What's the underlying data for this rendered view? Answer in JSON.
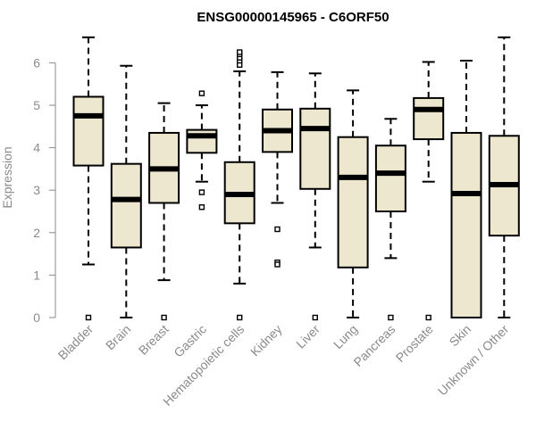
{
  "chart_data": {
    "type": "boxplot",
    "title": "ENSG00000145965 - C6ORF50",
    "ylabel": "Expression",
    "xlabel": "",
    "ylim": [
      0,
      6.6
    ],
    "yticks": [
      0,
      1,
      2,
      3,
      4,
      5,
      6
    ],
    "box_fill": "#ede7cf",
    "grid": false,
    "categories": [
      "Bladder",
      "Brain",
      "Breast",
      "Gastric",
      "Hematopoietic cells",
      "Kidney",
      "Liver",
      "Lung",
      "Pancreas",
      "Prostate",
      "Skin",
      "Unknown / Other"
    ],
    "boxes": [
      {
        "name": "Bladder",
        "whisker_low": 1.25,
        "q1": 3.58,
        "median": 4.75,
        "q3": 5.2,
        "whisker_high": 6.6,
        "outliers": [
          0
        ]
      },
      {
        "name": "Brain",
        "whisker_low": 0,
        "q1": 1.65,
        "median": 2.78,
        "q3": 3.62,
        "whisker_high": 5.93,
        "outliers": []
      },
      {
        "name": "Breast",
        "whisker_low": 0.88,
        "q1": 2.7,
        "median": 3.5,
        "q3": 4.35,
        "whisker_high": 5.05,
        "outliers": [
          0
        ]
      },
      {
        "name": "Gastric",
        "whisker_low": 3.2,
        "q1": 3.88,
        "median": 4.28,
        "q3": 4.42,
        "whisker_high": 5.0,
        "outliers": [
          5.28,
          2.95,
          2.6
        ]
      },
      {
        "name": "Hematopoietic cells",
        "whisker_low": 0.8,
        "q1": 2.22,
        "median": 2.9,
        "q3": 3.66,
        "whisker_high": 5.8,
        "outliers": [
          0,
          5.95,
          6.05,
          6.12,
          6.2,
          6.25
        ]
      },
      {
        "name": "Kidney",
        "whisker_low": 2.7,
        "q1": 3.9,
        "median": 4.4,
        "q3": 4.9,
        "whisker_high": 5.78,
        "outliers": [
          2.08,
          1.3,
          1.25
        ]
      },
      {
        "name": "Liver",
        "whisker_low": 1.65,
        "q1": 3.03,
        "median": 4.45,
        "q3": 4.92,
        "whisker_high": 5.75,
        "outliers": [
          0
        ]
      },
      {
        "name": "Lung",
        "whisker_low": 0,
        "q1": 1.18,
        "median": 3.3,
        "q3": 4.25,
        "whisker_high": 5.35,
        "outliers": []
      },
      {
        "name": "Pancreas",
        "whisker_low": 1.4,
        "q1": 2.5,
        "median": 3.4,
        "q3": 4.05,
        "whisker_high": 4.68,
        "outliers": [
          0
        ]
      },
      {
        "name": "Prostate",
        "whisker_low": 3.2,
        "q1": 4.2,
        "median": 4.9,
        "q3": 5.17,
        "whisker_high": 6.02,
        "outliers": [
          0
        ]
      },
      {
        "name": "Skin",
        "whisker_low": 0,
        "q1": 0,
        "median": 2.92,
        "q3": 4.35,
        "whisker_high": 6.05,
        "outliers": []
      },
      {
        "name": "Unknown / Other",
        "whisker_low": 0,
        "q1": 1.93,
        "median": 3.13,
        "q3": 4.28,
        "whisker_high": 6.6,
        "outliers": []
      }
    ]
  }
}
